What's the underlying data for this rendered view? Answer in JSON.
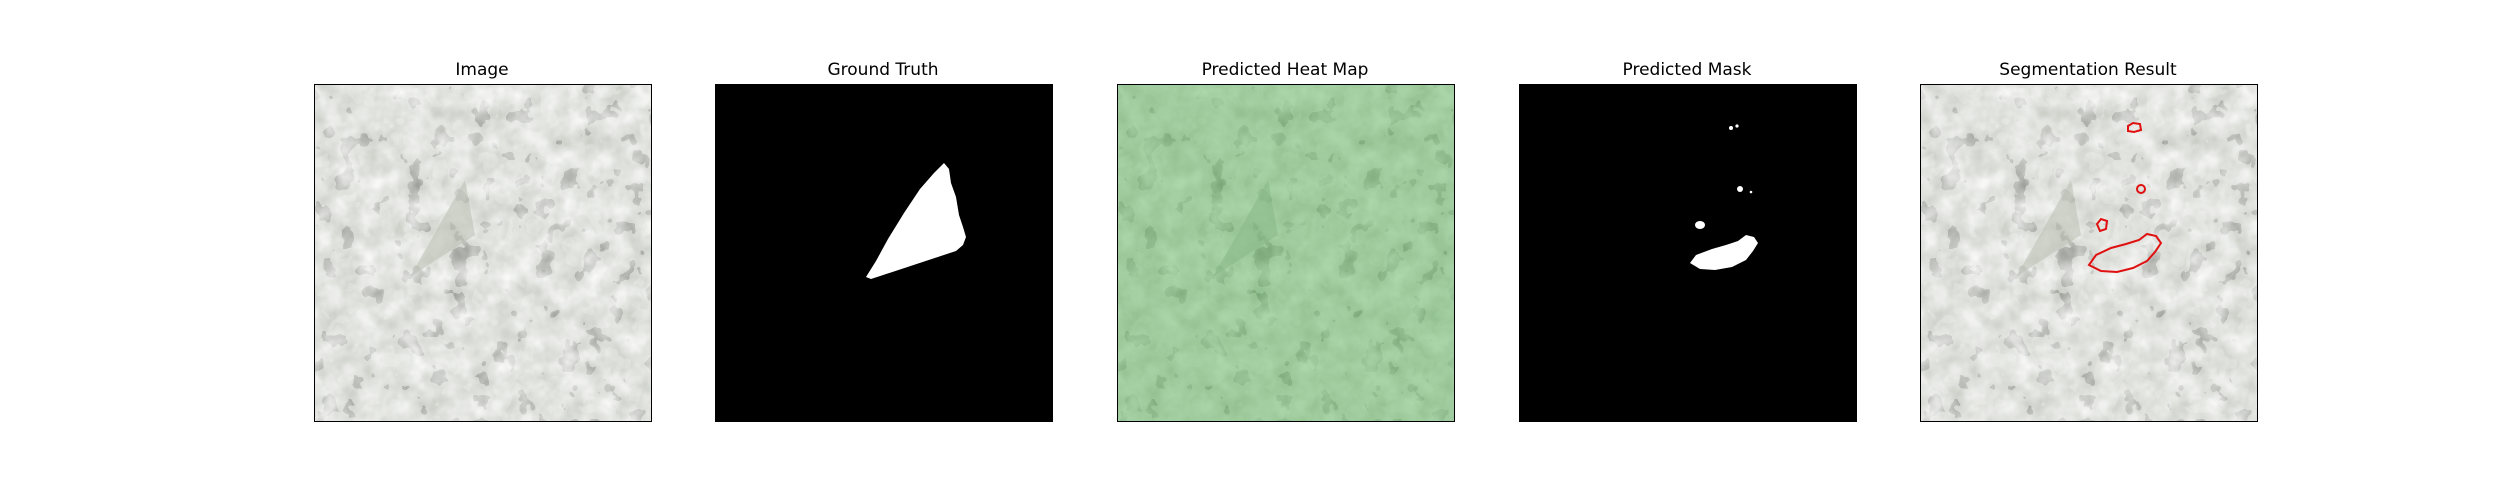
{
  "figure": {
    "panels": [
      {
        "id": "image",
        "title": "Image"
      },
      {
        "id": "ground-truth",
        "title": "Ground Truth"
      },
      {
        "id": "heat-map",
        "title": "Predicted Heat Map"
      },
      {
        "id": "predicted-mask",
        "title": "Predicted Mask"
      },
      {
        "id": "segmentation",
        "title": "Segmentation Result"
      }
    ],
    "colors": {
      "texture_light": "#9fa399",
      "texture_dark": "#3e3f3a",
      "heat_overlay": "#5aa05a",
      "mask_fg": "#ffffff",
      "mask_bg": "#000000",
      "contour": "#e01010"
    }
  }
}
